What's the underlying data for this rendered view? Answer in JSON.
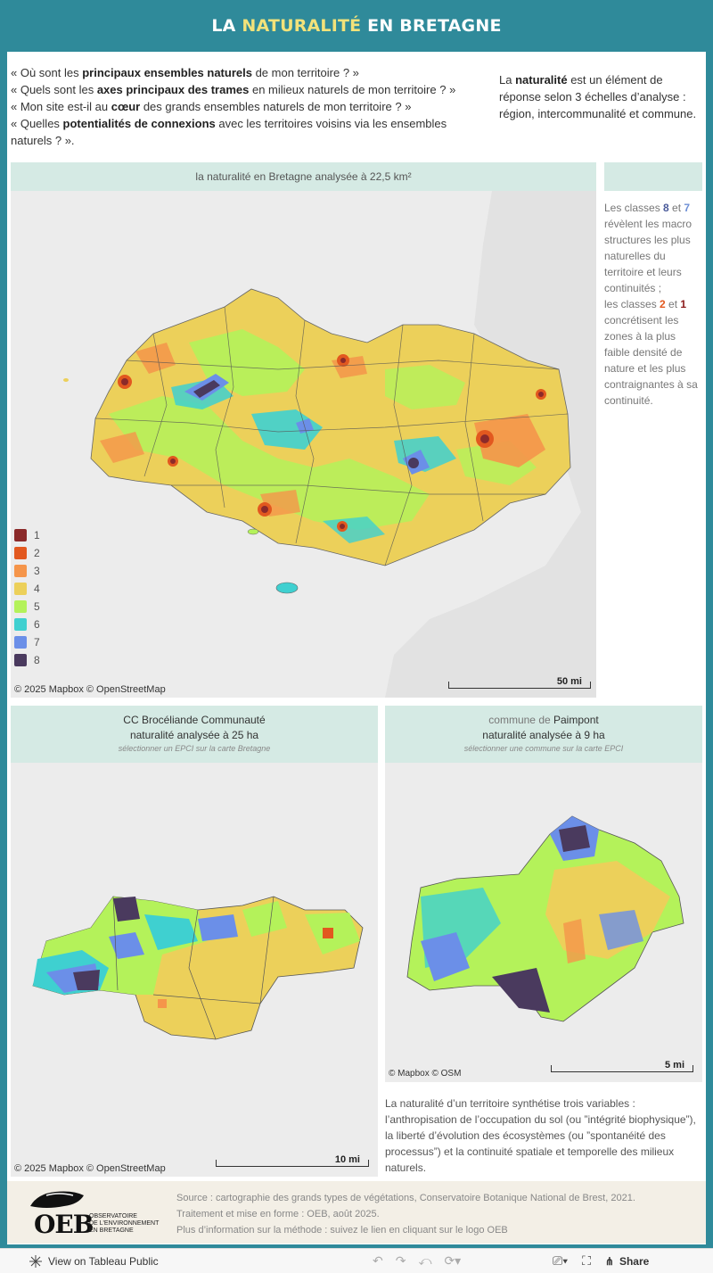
{
  "header": {
    "title_prefix": "LA ",
    "title_highlight": "NATURALITÉ",
    "title_suffix": " EN BRETAGNE"
  },
  "intro": {
    "questions": [
      {
        "a": "« Où sont les ",
        "b": "principaux ensembles naturels",
        "c": " de mon territoire ? »"
      },
      {
        "a": "« Quels sont les ",
        "b": "axes principaux des trames",
        "c": " en milieux naturels de mon territoire ? »"
      },
      {
        "a": "« Mon site est-il au ",
        "b": "cœur",
        "c": " des grands ensembles naturels de mon territoire ? »"
      },
      {
        "a": "« Quelles ",
        "b": "potentialités de connexions",
        "c": " avec les territoires voisins via les ensembles naturels ? »."
      }
    ],
    "side_a": "La ",
    "side_b": "naturalité",
    "side_c": " est un élément de réponse selon 3 échelles d’analyse : région, intercommunalité et commune."
  },
  "main_map": {
    "header": "la naturalité en Bretagne analysée à 22,5 km²",
    "credit": "© 2025 Mapbox  © OpenStreetMap",
    "scale_label": "50 mi"
  },
  "legend": [
    {
      "label": "1",
      "color": "#8b2a2a"
    },
    {
      "label": "2",
      "color": "#e2581f"
    },
    {
      "label": "3",
      "color": "#f5954a"
    },
    {
      "label": "4",
      "color": "#ecd05a"
    },
    {
      "label": "5",
      "color": "#b4f25a"
    },
    {
      "label": "6",
      "color": "#3fd0d0"
    },
    {
      "label": "7",
      "color": "#6b8fe8"
    },
    {
      "label": "8",
      "color": "#4a3a5e"
    }
  ],
  "side_note": {
    "t1": "Les classes ",
    "k8": "8",
    "t2": " et ",
    "k7": "7",
    "t3": " révèlent les macro structures les plus naturelles du territoire et leurs continuités ;",
    "t4": "les classes ",
    "k2": "2",
    "t5": " et ",
    "k1": "1",
    "t6": " concrétisent les zones à la plus faible densité de nature et les plus contraignantes à sa continuité."
  },
  "epci_map": {
    "line1": "CC Brocéliande Communauté",
    "line2": "naturalité analysée à 25 ha",
    "hint": "sélectionner un EPCI sur la carte Bretagne",
    "credit": "© 2025 Mapbox  © OpenStreetMap",
    "scale_label": "10 mi"
  },
  "commune_map": {
    "line1_a": "commune de ",
    "line1_b": "Paimpont",
    "line2": "naturalité analysée à 9 ha",
    "hint": "sélectionner une commune sur la carte EPCI",
    "credit": "© Mapbox  © OSM",
    "scale_label": "5 mi"
  },
  "description": "La naturalité d’un territoire synthétise trois variables : l’anthropisation de l’occupation du sol (ou ”intégrité biophysique”), la liberté d’évolution des écosystèmes (ou ”spontanéité des processus”) et la continuité spatiale et temporelle des milieux naturels.",
  "footer": {
    "source1": "Source : cartographie des grands types de végétations, Conservatoire Botanique National de Brest, 2021.",
    "source2": "Traitement et mise en forme : OEB, août 2025.",
    "source3": "Plus d’information sur la méthode : suivez le lien en cliquant sur le logo OEB",
    "logo_text": "OEB",
    "logo_sub1": "Observatoire",
    "logo_sub2": "de l'environnement",
    "logo_sub3": "en Bretagne"
  },
  "toolbar": {
    "view_label": "View on Tableau Public",
    "share_label": "Share"
  }
}
